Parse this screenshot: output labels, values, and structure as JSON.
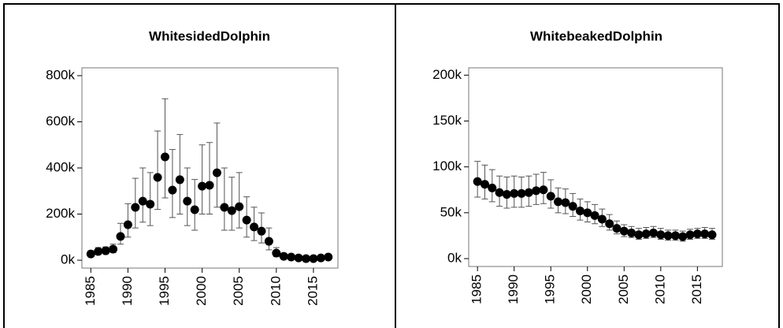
{
  "chart_data": [
    {
      "type": "scatter",
      "title": "WhitesidedDolphin",
      "color": "#000000",
      "x": [
        1985,
        1986,
        1987,
        1988,
        1989,
        1990,
        1991,
        1992,
        1993,
        1994,
        1995,
        1996,
        1997,
        1998,
        1999,
        2000,
        2001,
        2002,
        2003,
        2004,
        2005,
        2006,
        2007,
        2008,
        2009,
        2010,
        2011,
        2012,
        2013,
        2014,
        2015,
        2016,
        2017
      ],
      "values": [
        27000,
        38000,
        41000,
        48000,
        103000,
        154000,
        229000,
        256000,
        243000,
        359000,
        448000,
        304000,
        349000,
        256000,
        219000,
        321000,
        325000,
        379000,
        229000,
        215000,
        232000,
        174000,
        144000,
        126000,
        82000,
        31000,
        17000,
        14000,
        10000,
        7000,
        7000,
        10000,
        14000
      ],
      "lower": [
        15000,
        25000,
        28000,
        33000,
        70000,
        100000,
        140000,
        165000,
        150000,
        220000,
        270000,
        185000,
        200000,
        150000,
        130000,
        200000,
        200000,
        230000,
        130000,
        130000,
        140000,
        100000,
        85000,
        75000,
        45000,
        15000,
        8000,
        6000,
        4000,
        3000,
        3000,
        5000,
        7000
      ],
      "upper": [
        40000,
        55000,
        58000,
        70000,
        160000,
        245000,
        355000,
        400000,
        380000,
        560000,
        700000,
        480000,
        545000,
        400000,
        350000,
        500000,
        510000,
        595000,
        400000,
        360000,
        380000,
        275000,
        230000,
        205000,
        140000,
        55000,
        30000,
        25000,
        18000,
        14000,
        14000,
        18000,
        24000
      ],
      "xlim": [
        1983.8,
        2018.3
      ],
      "ylim": [
        -34000,
        834000
      ],
      "xticks": [
        1985,
        1990,
        1995,
        2000,
        2005,
        2010,
        2015
      ],
      "yticks": [
        {
          "value": 0,
          "label": "0k"
        },
        {
          "value": 200000,
          "label": "200k"
        },
        {
          "value": 400000,
          "label": "400k"
        },
        {
          "value": 600000,
          "label": "600k"
        },
        {
          "value": 800000,
          "label": "800k"
        }
      ]
    },
    {
      "type": "scatter",
      "title": "WhitebeakedDolphin",
      "color": "#000000",
      "x": [
        1985,
        1986,
        1987,
        1988,
        1989,
        1990,
        1991,
        1992,
        1993,
        1994,
        1995,
        1996,
        1997,
        1998,
        1999,
        2000,
        2001,
        2002,
        2003,
        2004,
        2005,
        2006,
        2007,
        2008,
        2009,
        2010,
        2011,
        2012,
        2013,
        2014,
        2015,
        2016,
        2017
      ],
      "values": [
        84000,
        81000,
        77000,
        72000,
        70000,
        71000,
        71000,
        72000,
        74000,
        75000,
        68000,
        62000,
        61000,
        57000,
        52000,
        50000,
        47000,
        43000,
        38000,
        33000,
        30000,
        28000,
        26000,
        27000,
        28000,
        26000,
        25000,
        25000,
        24000,
        26000,
        27000,
        27000,
        26000
      ],
      "lower": [
        67000,
        65000,
        62000,
        57000,
        55000,
        56000,
        56000,
        57000,
        59000,
        60000,
        55000,
        50000,
        49000,
        46000,
        42000,
        40000,
        38000,
        35000,
        31000,
        27000,
        24000,
        23000,
        21000,
        22000,
        23000,
        21000,
        20000,
        20000,
        19000,
        21000,
        22000,
        22000,
        21000
      ],
      "upper": [
        106000,
        102000,
        97000,
        90000,
        89000,
        90000,
        89000,
        90000,
        92000,
        94000,
        86000,
        77000,
        76000,
        71000,
        65000,
        62000,
        59000,
        54000,
        48000,
        41000,
        37000,
        35000,
        33000,
        34000,
        35000,
        33000,
        31000,
        31000,
        30000,
        32000,
        33000,
        34000,
        33000
      ],
      "xlim": [
        1983.8,
        2018.4
      ],
      "ylim": [
        -8600,
        208000
      ],
      "xticks": [
        1985,
        1990,
        1995,
        2000,
        2005,
        2010,
        2015
      ],
      "yticks": [
        {
          "value": 0,
          "label": "0k"
        },
        {
          "value": 50000,
          "label": "50k"
        },
        {
          "value": 100000,
          "label": "100k"
        },
        {
          "value": 150000,
          "label": "150k"
        },
        {
          "value": 200000,
          "label": "200k"
        }
      ]
    }
  ]
}
